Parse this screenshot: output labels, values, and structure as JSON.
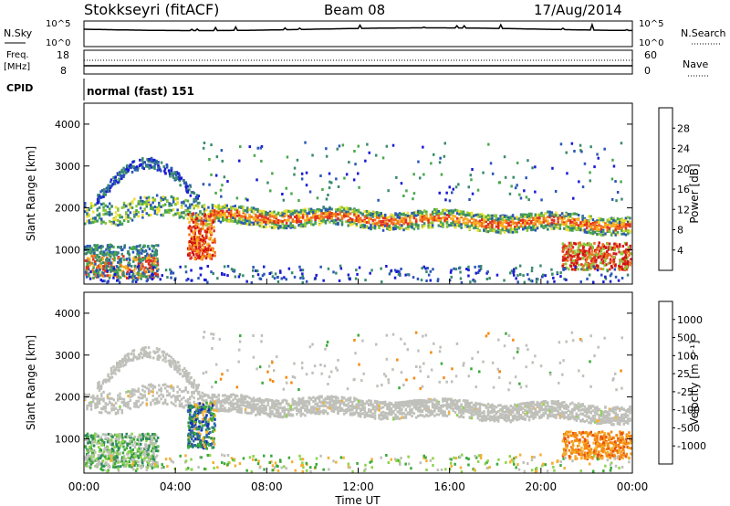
{
  "header": {
    "station": "Stokkseyri (fitACF)",
    "beam": "Beam 08",
    "date": "17/Aug/2014"
  },
  "panels": {
    "nsky": {
      "label": "N.Sky",
      "tick_top": "10^5",
      "tick_bottom": "10^0",
      "right_label": "N.Search",
      "right_tick_top": "10^5",
      "right_tick_bottom": "10^0"
    },
    "freq": {
      "label_line1": "Freq.",
      "label_line2": "[MHz]",
      "tick_top": "18",
      "tick_bottom": "8",
      "right_label": "Nave",
      "right_tick_top": "60",
      "right_tick_bottom": "0"
    },
    "cpid": {
      "label": "CPID",
      "text": "normal (fast) 151"
    }
  },
  "colors": {
    "power_scale": [
      "#1a1ad6",
      "#2a56b8",
      "#3a8a6e",
      "#48a84a",
      "#8cc63a",
      "#f0e030",
      "#f8b020",
      "#f07020",
      "#e03020",
      "#d01010"
    ],
    "velocity_scale": [
      "#1530b8",
      "#2c64a8",
      "#2e8a5c",
      "#3aaa3a",
      "#8cd44a",
      "#bebeb8",
      "#f4b030",
      "#f48a10",
      "#e85010",
      "#e01010"
    ],
    "gray_scatter": "#c0c0bb"
  },
  "chart_data": [
    {
      "type": "heatmap",
      "name": "power",
      "ylabel": "Slant Range [km]",
      "xlabel": "Time UT",
      "xlim": [
        "00:00",
        "24:00"
      ],
      "ylim": [
        180,
        4500
      ],
      "x_ticks": [
        "00:00",
        "04:00",
        "08:00",
        "12:00",
        "16:00",
        "20:00",
        "00:00"
      ],
      "y_ticks": [
        1000,
        2000,
        3000,
        4000
      ],
      "colorbar_label": "Power [dB]",
      "colorbar_ticks": [
        "28",
        "24",
        "20",
        "16",
        "12",
        "8",
        "4"
      ],
      "features": [
        {
          "desc": "main F-region band",
          "time_hours": [
            5.5,
            24
          ],
          "range_km": [
            1500,
            2000
          ]
        },
        {
          "desc": "early strong echoes",
          "time_hours": [
            0,
            3
          ],
          "range_km": [
            400,
            1000
          ]
        },
        {
          "desc": "late strong echoes",
          "time_hours": [
            21,
            24
          ],
          "range_km": [
            700,
            1100
          ]
        }
      ]
    },
    {
      "type": "heatmap",
      "name": "velocity",
      "ylabel": "Slant Range [km]",
      "xlabel": "Time UT",
      "xlim": [
        "00:00",
        "24:00"
      ],
      "ylim": [
        180,
        4500
      ],
      "x_ticks": [
        "00:00",
        "04:00",
        "08:00",
        "12:00",
        "16:00",
        "20:00",
        "00:00"
      ],
      "y_ticks": [
        1000,
        2000,
        3000,
        4000
      ],
      "colorbar_label": "Velocity [m s⁻¹]",
      "colorbar_ticks": [
        "1000",
        "500",
        "100",
        "25",
        "-25",
        "-100",
        "-500",
        "-1000"
      ],
      "features": [
        {
          "desc": "ground scatter band",
          "time_hours": [
            5.5,
            24
          ],
          "range_km": [
            1500,
            2000
          ]
        },
        {
          "desc": "negative velocities late",
          "time_hours": [
            21,
            24
          ],
          "range_km": [
            600,
            1100
          ]
        }
      ]
    }
  ]
}
